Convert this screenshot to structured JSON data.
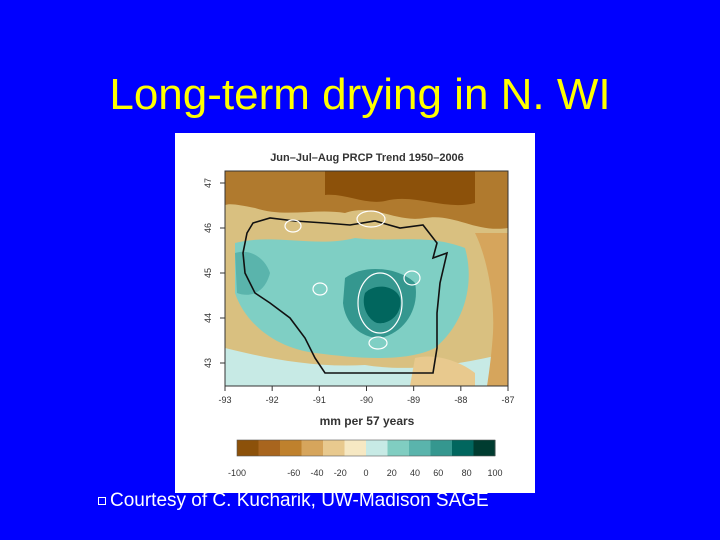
{
  "slide": {
    "title": "Long-term drying in N. WI",
    "caption": "Courtesy of C. Kucharik, UW-Madison SAGE"
  },
  "map": {
    "title": "Jun–Jul–Aug PRCP Trend 1950–2006",
    "xlabel": "mm per 57 years",
    "lon_ticks": [
      "-93",
      "-92",
      "-91",
      "-90",
      "-89",
      "-88",
      "-87"
    ],
    "lat_ticks": [
      "47",
      "46",
      "45",
      "44",
      "43"
    ],
    "colorbar_labels": [
      "-100",
      "-60",
      "-40",
      "-20",
      "0",
      "20",
      "40",
      "60",
      "80",
      "100"
    ],
    "colorbar_colors": [
      "#8c510a",
      "#a8651e",
      "#bf812d",
      "#d6a55c",
      "#e8c98e",
      "#f6e8c3",
      "#c7eae5",
      "#80cdc1",
      "#5ab4ac",
      "#35978f",
      "#01665e",
      "#003c30"
    ]
  }
}
